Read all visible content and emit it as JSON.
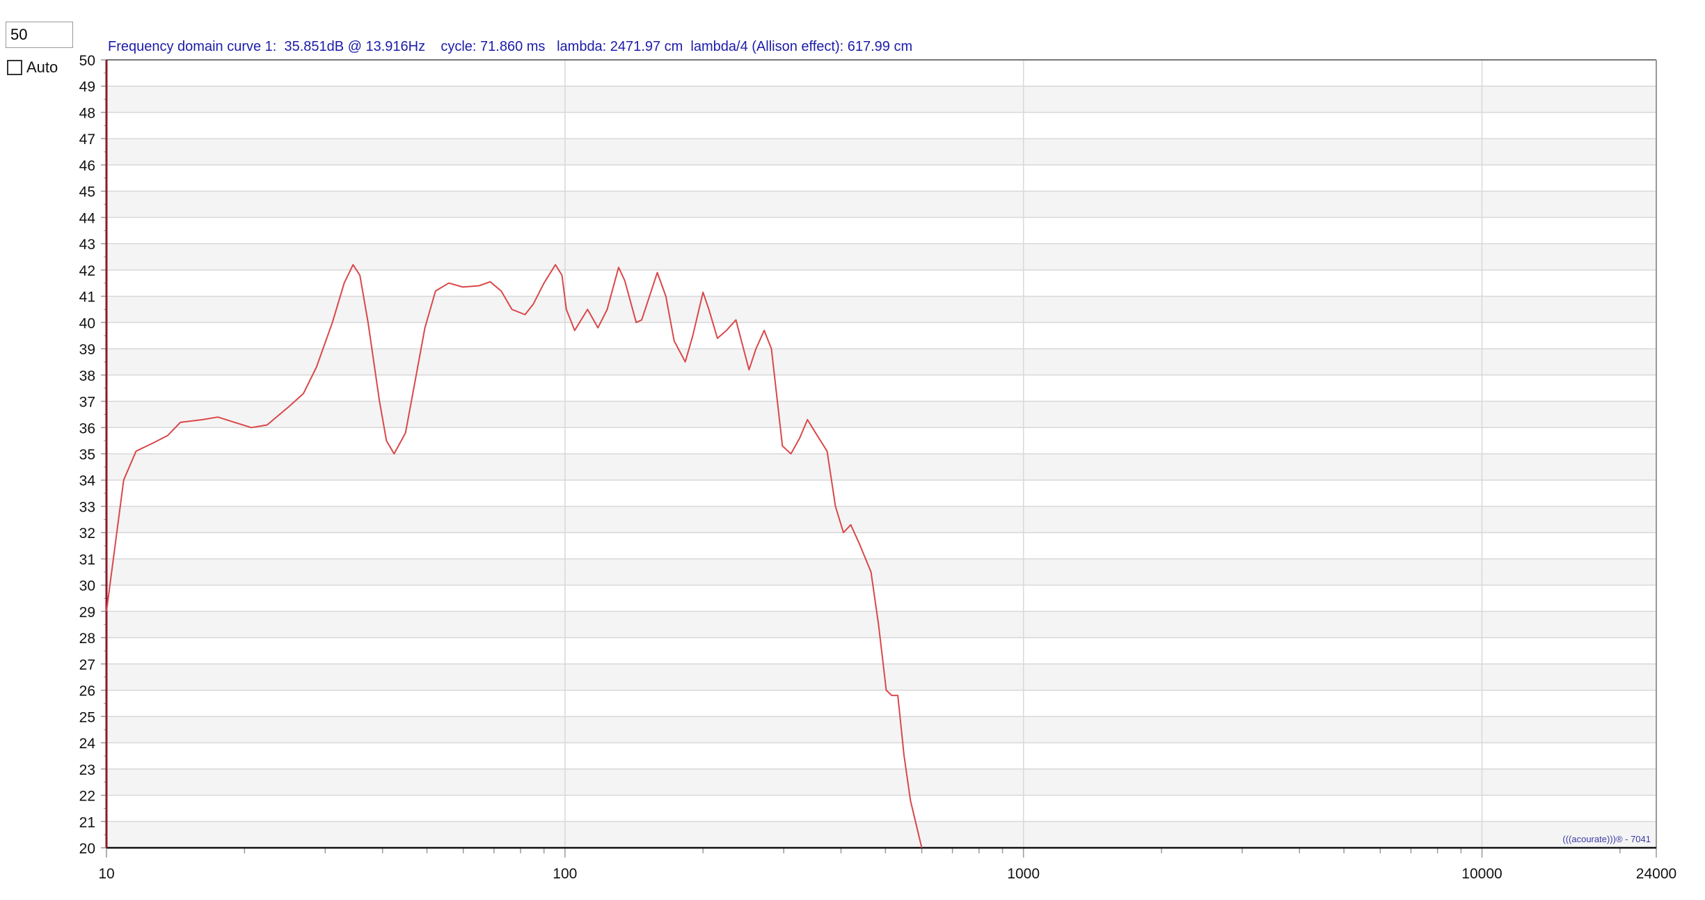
{
  "controls": {
    "level_value": "50",
    "auto_label": "Auto",
    "auto_checked": false
  },
  "header": {
    "readout": "Frequency domain curve 1:  35.851dB @ 13.916Hz    cycle: 71.860 ms   lambda: 2471.97 cm  lambda/4 (Allison effect): 617.99 cm"
  },
  "watermark": "(((acourate)))® - 7041",
  "chart_data": {
    "type": "line",
    "title": "",
    "xlabel": "",
    "ylabel": "",
    "x_scale": "log",
    "xlim": [
      10,
      24000
    ],
    "ylim": [
      20,
      50
    ],
    "x_tick_labels": [
      "10",
      "100",
      "1000",
      "10000",
      "24000"
    ],
    "x_ticks": [
      10,
      100,
      1000,
      10000,
      24000
    ],
    "y_ticks": [
      20,
      21,
      22,
      23,
      24,
      25,
      26,
      27,
      28,
      29,
      30,
      31,
      32,
      33,
      34,
      35,
      36,
      37,
      38,
      39,
      40,
      41,
      42,
      43,
      44,
      45,
      46,
      47,
      48,
      49,
      50
    ],
    "grid": true,
    "legend": "none",
    "colors": {
      "curve": "#d9474a",
      "grid": "#d8d8d8",
      "band": "#f4f4f4",
      "left_axis": "#8b1a2b",
      "header": "#1c1ca8"
    },
    "series": [
      {
        "x": [
          10,
          10.9,
          11.6,
          12.6,
          13.6,
          14.5,
          16.2,
          17.5,
          19,
          20.7,
          22.4,
          25,
          26.9,
          28.7,
          31.1,
          33,
          34.5,
          35.7,
          37.2,
          39.4,
          40.8,
          42.4,
          44.9,
          46.8,
          49.5,
          52.2,
          55.8,
          59.9,
          65,
          68.7,
          72.6,
          76.6,
          81.8,
          85.3,
          90,
          95.3,
          98.5,
          100.7,
          105,
          112,
          118,
          123.6,
          130.9,
          135,
          143,
          147,
          159,
          166,
          173,
          183,
          190,
          200,
          206,
          215,
          225,
          236,
          252,
          261,
          272,
          282,
          298,
          311,
          325,
          338,
          352,
          373,
          389,
          405,
          420,
          438,
          465,
          483,
          502,
          516,
          532,
          549,
          567,
          600
        ],
        "y": [
          29,
          34,
          35.1,
          35.4,
          35.7,
          36.2,
          36.3,
          36.4,
          36.2,
          36.0,
          36.1,
          36.8,
          37.3,
          38.3,
          40,
          41.5,
          42.2,
          41.8,
          40,
          37,
          35.5,
          35.0,
          35.8,
          37.5,
          39.8,
          41.2,
          41.5,
          41.35,
          41.4,
          41.55,
          41.2,
          40.5,
          40.3,
          40.7,
          41.5,
          42.2,
          41.8,
          40.5,
          39.7,
          40.5,
          39.8,
          40.5,
          42.1,
          41.6,
          40,
          40.1,
          41.9,
          41,
          39.3,
          38.5,
          39.5,
          41.15,
          40.5,
          39.4,
          39.7,
          40.1,
          38.2,
          39,
          39.7,
          39,
          35.3,
          35,
          35.6,
          36.3,
          35.8,
          35.1,
          33,
          32,
          32.3,
          31.6,
          30.5,
          28.5,
          26,
          25.8,
          25.8,
          23.5,
          21.8,
          20
        ]
      }
    ]
  }
}
